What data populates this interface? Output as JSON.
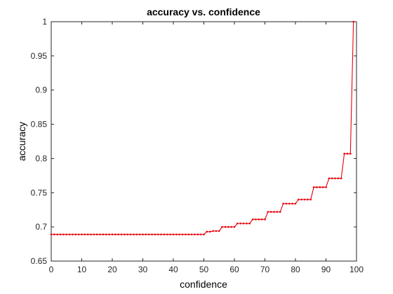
{
  "chart_data": {
    "type": "line",
    "title": "accuracy vs. confidence",
    "xlabel": "confidence",
    "ylabel": "accuracy",
    "xlim": [
      0,
      100
    ],
    "ylim": [
      0.65,
      1
    ],
    "x_ticks": [
      "0",
      "10",
      "20",
      "30",
      "40",
      "50",
      "60",
      "70",
      "80",
      "90",
      "100"
    ],
    "y_ticks": [
      "0.65",
      "0.7",
      "0.75",
      "0.8",
      "0.85",
      "0.9",
      "0.95",
      "1"
    ],
    "grid": false,
    "colors": {
      "series": "#e8000b",
      "axes": "#262626"
    },
    "series": [
      {
        "marker": "dot",
        "x": [
          0,
          1,
          2,
          3,
          4,
          5,
          6,
          7,
          8,
          9,
          10,
          11,
          12,
          13,
          14,
          15,
          16,
          17,
          18,
          19,
          20,
          21,
          22,
          23,
          24,
          25,
          26,
          27,
          28,
          29,
          30,
          31,
          32,
          33,
          34,
          35,
          36,
          37,
          38,
          39,
          40,
          41,
          42,
          43,
          44,
          45,
          46,
          47,
          48,
          49,
          50,
          51,
          52,
          53,
          54,
          55,
          56,
          57,
          58,
          59,
          60,
          61,
          62,
          63,
          64,
          65,
          66,
          67,
          68,
          69,
          70,
          71,
          72,
          73,
          74,
          75,
          76,
          77,
          78,
          79,
          80,
          81,
          82,
          83,
          84,
          85,
          86,
          87,
          88,
          89,
          90,
          91,
          92,
          93,
          94,
          95,
          96,
          97,
          98,
          99
        ],
        "y": [
          0.689,
          0.689,
          0.689,
          0.689,
          0.689,
          0.689,
          0.689,
          0.689,
          0.689,
          0.689,
          0.689,
          0.689,
          0.689,
          0.689,
          0.689,
          0.689,
          0.689,
          0.689,
          0.689,
          0.689,
          0.689,
          0.689,
          0.689,
          0.689,
          0.689,
          0.689,
          0.689,
          0.689,
          0.689,
          0.689,
          0.689,
          0.689,
          0.689,
          0.689,
          0.689,
          0.689,
          0.689,
          0.689,
          0.689,
          0.689,
          0.689,
          0.689,
          0.689,
          0.689,
          0.689,
          0.689,
          0.689,
          0.689,
          0.689,
          0.689,
          0.689,
          0.693,
          0.693,
          0.694,
          0.694,
          0.694,
          0.7,
          0.7,
          0.7,
          0.7,
          0.7,
          0.705,
          0.705,
          0.705,
          0.705,
          0.705,
          0.711,
          0.711,
          0.711,
          0.711,
          0.711,
          0.722,
          0.722,
          0.722,
          0.722,
          0.722,
          0.734,
          0.734,
          0.734,
          0.734,
          0.734,
          0.74,
          0.74,
          0.74,
          0.74,
          0.74,
          0.758,
          0.758,
          0.758,
          0.758,
          0.758,
          0.771,
          0.771,
          0.771,
          0.771,
          0.771,
          0.807,
          0.807,
          0.807,
          1.0
        ]
      }
    ]
  }
}
